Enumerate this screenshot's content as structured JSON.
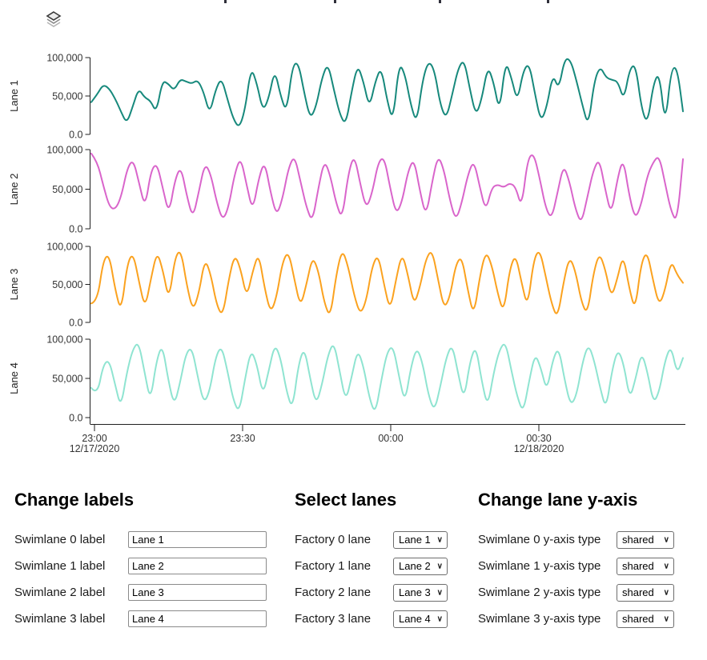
{
  "icons": {
    "layers": "layers-icon",
    "chevron_down": "∨"
  },
  "chart_data": {
    "type": "line",
    "layout": "swimlanes",
    "title": "",
    "ylim": [
      0,
      100000
    ],
    "unit_multiplier": 1000,
    "grid": false,
    "y_tick_labels": [
      "100,000",
      "50,000",
      "0.0"
    ],
    "x_axis": {
      "ticks": [
        {
          "time": "23:00",
          "date": "12/17/2020"
        },
        {
          "time": "23:30",
          "date": ""
        },
        {
          "time": "00:00",
          "date": ""
        },
        {
          "time": "00:30",
          "date": "12/18/2020"
        }
      ],
      "range_note": "approx 22:59 12/17/2020 to 01:00 12/18/2020"
    },
    "lanes": [
      {
        "label": "Lane 1",
        "color": "#17897c",
        "values_thousands": [
          42,
          52,
          65,
          60,
          47,
          30,
          14,
          36,
          60,
          48,
          44,
          28,
          70,
          66,
          57,
          72,
          69,
          66,
          71,
          55,
          26,
          58,
          74,
          46,
          20,
          8,
          32,
          88,
          66,
          30,
          47,
          85,
          50,
          28,
          90,
          94,
          54,
          20,
          36,
          74,
          93,
          58,
          26,
          12,
          56,
          91,
          69,
          34,
          69,
          88,
          44,
          16,
          93,
          79,
          38,
          14,
          71,
          96,
          84,
          38,
          20,
          52,
          86,
          98,
          58,
          24,
          46,
          89,
          68,
          28,
          96,
          74,
          42,
          83,
          93,
          52,
          16,
          36,
          79,
          58,
          99,
          97,
          70,
          38,
          10,
          69,
          89,
          74,
          71,
          69,
          44,
          86,
          91,
          33,
          13,
          66,
          81,
          10,
          85,
          88,
          30
        ]
      },
      {
        "label": "Lane 2",
        "color": "#d965cb",
        "values_thousands": [
          95,
          85,
          55,
          28,
          24,
          40,
          76,
          88,
          58,
          26,
          74,
          83,
          50,
          18,
          62,
          79,
          41,
          13,
          47,
          83,
          69,
          33,
          10,
          28,
          70,
          91,
          55,
          22,
          63,
          86,
          46,
          16,
          38,
          77,
          93,
          60,
          27,
          8,
          52,
          87,
          67,
          31,
          12,
          70,
          94,
          57,
          25,
          45,
          84,
          91,
          52,
          18,
          34,
          73,
          89,
          47,
          15,
          58,
          93,
          75,
          36,
          10,
          33,
          68,
          87,
          53,
          22,
          52,
          56,
          52,
          58,
          53,
          26,
          88,
          96,
          65,
          27,
          12,
          45,
          81,
          60,
          25,
          6,
          40,
          74,
          89,
          49,
          17,
          62,
          90,
          42,
          12,
          30,
          66,
          84,
          93,
          58,
          22,
          8,
          88
        ]
      },
      {
        "label": "Lane 3",
        "color": "#fba21f",
        "values_thousands": [
          25,
          27,
          82,
          90,
          43,
          13,
          77,
          92,
          53,
          18,
          58,
          94,
          68,
          28,
          86,
          96,
          48,
          15,
          38,
          84,
          63,
          22,
          8,
          57,
          90,
          70,
          32,
          67,
          92,
          45,
          12,
          33,
          80,
          94,
          56,
          20,
          50,
          87,
          68,
          25,
          6,
          64,
          97,
          73,
          35,
          10,
          28,
          74,
          90,
          49,
          15,
          57,
          92,
          62,
          22,
          47,
          84,
          96,
          58,
          18,
          33,
          77,
          87,
          42,
          8,
          60,
          94,
          76,
          38,
          12,
          70,
          90,
          52,
          19,
          82,
          97,
          62,
          25,
          5,
          52,
          87,
          68,
          27,
          10,
          64,
          92,
          70,
          32,
          57,
          90,
          45,
          15,
          78,
          94,
          55,
          22,
          42,
          82,
          63,
          52
        ]
      },
      {
        "label": "Lane 4",
        "color": "#8fe4d1",
        "values_thousands": [
          38,
          28,
          67,
          74,
          43,
          12,
          57,
          87,
          97,
          58,
          20,
          72,
          94,
          48,
          15,
          44,
          82,
          90,
          52,
          18,
          33,
          77,
          92,
          60,
          22,
          6,
          50,
          87,
          68,
          28,
          60,
          94,
          76,
          33,
          10,
          67,
          90,
          50,
          16,
          42,
          80,
          97,
          58,
          20,
          52,
          87,
          66,
          25,
          4,
          47,
          84,
          92,
          53,
          18,
          64,
          90,
          70,
          28,
          8,
          40,
          77,
          94,
          56,
          22,
          72,
          92,
          46,
          13,
          57,
          87,
          97,
          60,
          26,
          6,
          47,
          82,
          63,
          33,
          74,
          90,
          48,
          15,
          28,
          70,
          94,
          73,
          38,
          10,
          60,
          88,
          68,
          23,
          50,
          84,
          58,
          18,
          33,
          74,
          92,
          55,
          76
        ]
      }
    ]
  },
  "controls": {
    "labels_section": {
      "heading": "Change labels",
      "rows": [
        {
          "label": "Swimlane 0 label",
          "value": "Lane 1"
        },
        {
          "label": "Swimlane 1 label",
          "value": "Lane 2"
        },
        {
          "label": "Swimlane 2 label",
          "value": "Lane 3"
        },
        {
          "label": "Swimlane 3 label",
          "value": "Lane 4"
        }
      ]
    },
    "lanes_section": {
      "heading": "Select lanes",
      "rows": [
        {
          "label": "Factory 0 lane",
          "value": "Lane 1"
        },
        {
          "label": "Factory 1 lane",
          "value": "Lane 2"
        },
        {
          "label": "Factory 2 lane",
          "value": "Lane 3"
        },
        {
          "label": "Factory 3 lane",
          "value": "Lane 4"
        }
      ]
    },
    "yaxis_section": {
      "heading": "Change lane y-axis",
      "rows": [
        {
          "label": "Swimlane 0 y-axis type",
          "value": "shared"
        },
        {
          "label": "Swimlane 1 y-axis type",
          "value": "shared"
        },
        {
          "label": "Swimlane 2 y-axis type",
          "value": "shared"
        },
        {
          "label": "Swimlane 3 y-axis type",
          "value": "shared"
        }
      ]
    }
  }
}
